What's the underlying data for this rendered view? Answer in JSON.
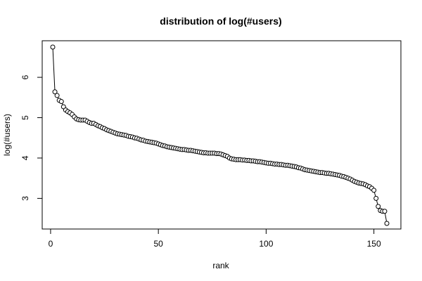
{
  "chart_data": {
    "type": "line",
    "title": "distribution of log(#users)",
    "xlabel": "rank",
    "ylabel": "log(#users)",
    "xlim": [
      1,
      156
    ],
    "ylim": [
      2.38,
      6.75
    ],
    "x_ticks": [
      0,
      50,
      100,
      150
    ],
    "y_ticks": [
      3,
      4,
      5,
      6
    ],
    "grid": false,
    "legend": "none",
    "marker": "open-circle",
    "line_color": "#000000",
    "marker_color": "#000000",
    "x": [
      1,
      2,
      3,
      4,
      5,
      6,
      7,
      8,
      9,
      10,
      11,
      12,
      13,
      14,
      15,
      16,
      17,
      18,
      19,
      20,
      21,
      22,
      23,
      24,
      25,
      26,
      27,
      28,
      29,
      30,
      31,
      32,
      33,
      34,
      35,
      36,
      37,
      38,
      39,
      40,
      41,
      42,
      43,
      44,
      45,
      46,
      47,
      48,
      49,
      50,
      51,
      52,
      53,
      54,
      55,
      56,
      57,
      58,
      59,
      60,
      61,
      62,
      63,
      64,
      65,
      66,
      67,
      68,
      69,
      70,
      71,
      72,
      73,
      74,
      75,
      76,
      77,
      78,
      79,
      80,
      81,
      82,
      83,
      84,
      85,
      86,
      87,
      88,
      89,
      90,
      91,
      92,
      93,
      94,
      95,
      96,
      97,
      98,
      99,
      100,
      101,
      102,
      103,
      104,
      105,
      106,
      107,
      108,
      109,
      110,
      111,
      112,
      113,
      114,
      115,
      116,
      117,
      118,
      119,
      120,
      121,
      122,
      123,
      124,
      125,
      126,
      127,
      128,
      129,
      130,
      131,
      132,
      133,
      134,
      135,
      136,
      137,
      138,
      139,
      140,
      141,
      142,
      143,
      144,
      145,
      146,
      147,
      148,
      149,
      150,
      151,
      152,
      153,
      154,
      155,
      156
    ],
    "values": [
      6.75,
      5.64,
      5.55,
      5.43,
      5.4,
      5.27,
      5.19,
      5.15,
      5.12,
      5.08,
      5.02,
      4.97,
      4.95,
      4.94,
      4.94,
      4.94,
      4.91,
      4.88,
      4.86,
      4.86,
      4.83,
      4.8,
      4.78,
      4.75,
      4.73,
      4.7,
      4.68,
      4.66,
      4.64,
      4.62,
      4.6,
      4.59,
      4.58,
      4.57,
      4.56,
      4.54,
      4.53,
      4.52,
      4.5,
      4.49,
      4.47,
      4.45,
      4.44,
      4.42,
      4.41,
      4.4,
      4.39,
      4.38,
      4.37,
      4.35,
      4.33,
      4.31,
      4.3,
      4.28,
      4.27,
      4.26,
      4.25,
      4.24,
      4.23,
      4.22,
      4.21,
      4.21,
      4.2,
      4.19,
      4.19,
      4.18,
      4.17,
      4.16,
      4.15,
      4.14,
      4.13,
      4.13,
      4.12,
      4.12,
      4.12,
      4.12,
      4.11,
      4.11,
      4.1,
      4.08,
      4.06,
      4.04,
      4.0,
      3.98,
      3.97,
      3.96,
      3.96,
      3.96,
      3.95,
      3.95,
      3.94,
      3.94,
      3.93,
      3.93,
      3.92,
      3.91,
      3.91,
      3.9,
      3.89,
      3.88,
      3.87,
      3.87,
      3.86,
      3.85,
      3.85,
      3.84,
      3.84,
      3.83,
      3.82,
      3.82,
      3.81,
      3.8,
      3.79,
      3.78,
      3.76,
      3.75,
      3.73,
      3.71,
      3.7,
      3.69,
      3.68,
      3.67,
      3.66,
      3.65,
      3.64,
      3.64,
      3.63,
      3.62,
      3.62,
      3.61,
      3.6,
      3.59,
      3.58,
      3.57,
      3.55,
      3.54,
      3.52,
      3.5,
      3.48,
      3.45,
      3.42,
      3.4,
      3.38,
      3.37,
      3.36,
      3.34,
      3.31,
      3.29,
      3.25,
      3.2,
      3.0,
      2.8,
      2.7,
      2.68,
      2.68,
      2.38
    ]
  }
}
